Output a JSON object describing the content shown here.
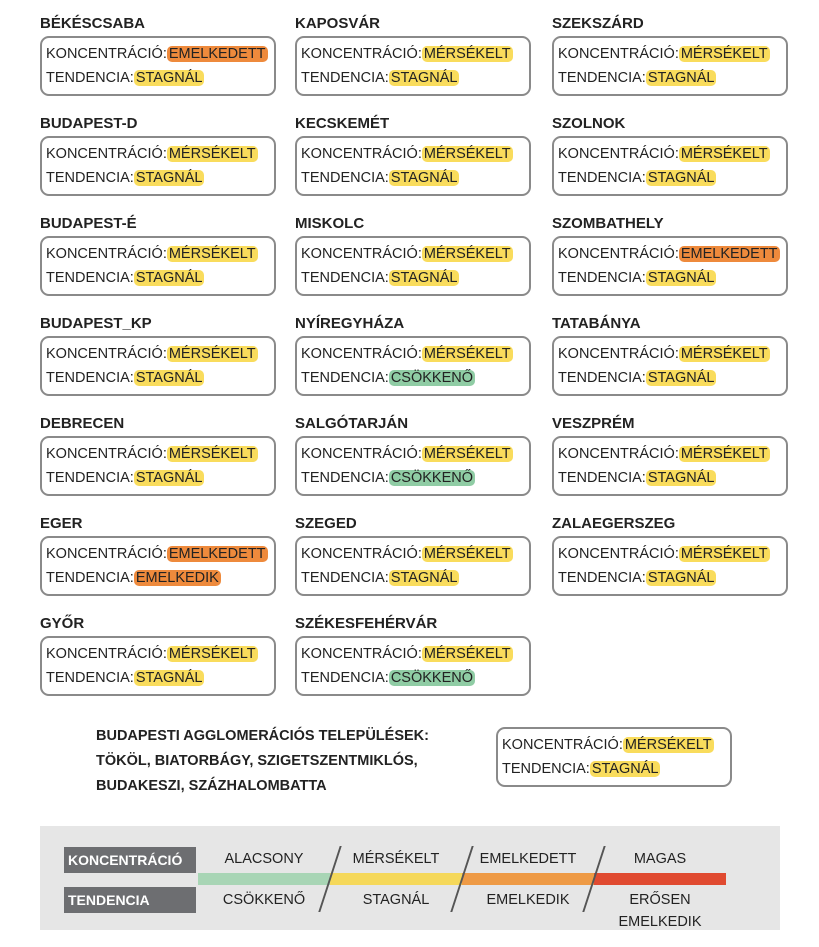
{
  "labels": {
    "concentration": "KONCENTRÁCIÓ:",
    "trend": "TENDENCIA:"
  },
  "columns": [
    [
      {
        "name": "BÉKÉSCSABA",
        "concentration": {
          "text": "EMELKEDETT",
          "color": "#ee8a3c"
        },
        "trend": {
          "text": "STAGNÁL",
          "color": "#f9dc5c"
        }
      },
      {
        "name": "BUDAPEST-D",
        "concentration": {
          "text": "MÉRSÉKELT",
          "color": "#f9dc5c"
        },
        "trend": {
          "text": "STAGNÁL",
          "color": "#f9dc5c"
        }
      },
      {
        "name": "BUDAPEST-É",
        "concentration": {
          "text": "MÉRSÉKELT",
          "color": "#f9dc5c"
        },
        "trend": {
          "text": "STAGNÁL",
          "color": "#f9dc5c"
        }
      },
      {
        "name": "BUDAPEST_KP",
        "concentration": {
          "text": "MÉRSÉKELT",
          "color": "#f9dc5c"
        },
        "trend": {
          "text": "STAGNÁL",
          "color": "#f9dc5c"
        }
      },
      {
        "name": "DEBRECEN",
        "concentration": {
          "text": "MÉRSÉKELT",
          "color": "#f9dc5c"
        },
        "trend": {
          "text": "STAGNÁL",
          "color": "#f9dc5c"
        }
      },
      {
        "name": "EGER",
        "concentration": {
          "text": "EMELKEDETT",
          "color": "#ee8a3c"
        },
        "trend": {
          "text": "EMELKEDIK",
          "color": "#ee8a3c"
        }
      },
      {
        "name": "GYŐR",
        "concentration": {
          "text": "MÉRSÉKELT",
          "color": "#f9dc5c"
        },
        "trend": {
          "text": "STAGNÁL",
          "color": "#f9dc5c"
        }
      }
    ],
    [
      {
        "name": "KAPOSVÁR",
        "concentration": {
          "text": "MÉRSÉKELT",
          "color": "#f9dc5c"
        },
        "trend": {
          "text": "STAGNÁL",
          "color": "#f9dc5c"
        }
      },
      {
        "name": "KECSKEMÉT",
        "concentration": {
          "text": "MÉRSÉKELT",
          "color": "#f9dc5c"
        },
        "trend": {
          "text": "STAGNÁL",
          "color": "#f9dc5c"
        }
      },
      {
        "name": "MISKOLC",
        "concentration": {
          "text": "MÉRSÉKELT",
          "color": "#f9dc5c"
        },
        "trend": {
          "text": "STAGNÁL",
          "color": "#f9dc5c"
        }
      },
      {
        "name": "NYÍREGYHÁZA",
        "concentration": {
          "text": "MÉRSÉKELT",
          "color": "#f9dc5c"
        },
        "trend": {
          "text": "CSÖKKENŐ",
          "color": "#8fcca4"
        }
      },
      {
        "name": "SALGÓTARJÁN",
        "concentration": {
          "text": "MÉRSÉKELT",
          "color": "#f9dc5c"
        },
        "trend": {
          "text": "CSÖKKENŐ",
          "color": "#8fcca4"
        }
      },
      {
        "name": "SZEGED",
        "concentration": {
          "text": "MÉRSÉKELT",
          "color": "#f9dc5c"
        },
        "trend": {
          "text": "STAGNÁL",
          "color": "#f9dc5c"
        }
      },
      {
        "name": "SZÉKESFEHÉRVÁR",
        "concentration": {
          "text": "MÉRSÉKELT",
          "color": "#f9dc5c"
        },
        "trend": {
          "text": "CSÖKKENŐ",
          "color": "#8fcca4"
        }
      }
    ],
    [
      {
        "name": "SZEKSZÁRD",
        "concentration": {
          "text": "MÉRSÉKELT",
          "color": "#f9dc5c"
        },
        "trend": {
          "text": "STAGNÁL",
          "color": "#f9dc5c"
        }
      },
      {
        "name": "SZOLNOK",
        "concentration": {
          "text": "MÉRSÉKELT",
          "color": "#f9dc5c"
        },
        "trend": {
          "text": "STAGNÁL",
          "color": "#f9dc5c"
        }
      },
      {
        "name": "SZOMBATHELY",
        "concentration": {
          "text": "EMELKEDETT",
          "color": "#ee8a3c"
        },
        "trend": {
          "text": "STAGNÁL",
          "color": "#f9dc5c"
        }
      },
      {
        "name": "TATABÁNYA",
        "concentration": {
          "text": "MÉRSÉKELT",
          "color": "#f9dc5c"
        },
        "trend": {
          "text": "STAGNÁL",
          "color": "#f9dc5c"
        }
      },
      {
        "name": "VESZPRÉM",
        "concentration": {
          "text": "MÉRSÉKELT",
          "color": "#f9dc5c"
        },
        "trend": {
          "text": "STAGNÁL",
          "color": "#f9dc5c"
        }
      },
      {
        "name": "ZALAEGERSZEG",
        "concentration": {
          "text": "MÉRSÉKELT",
          "color": "#f9dc5c"
        },
        "trend": {
          "text": "STAGNÁL",
          "color": "#f9dc5c"
        }
      }
    ]
  ],
  "agglomeration": {
    "lines": [
      "BUDAPESTI AGGLOMERÁCIÓS TELEPÜLÉSEK:",
      "TÖKÖL, BIATORBÁGY, SZIGETSZENTMIKLÓS,",
      "BUDAKESZI, SZÁZHALOMBATTA"
    ],
    "concentration": {
      "text": "MÉRSÉKELT",
      "color": "#f9dc5c"
    },
    "trend": {
      "text": "STAGNÁL",
      "color": "#f9dc5c"
    }
  },
  "legend": {
    "concentration_header": "KONCENTRÁCIÓ",
    "trend_header": "TENDENCIA",
    "levels": [
      {
        "concentration": "ALACSONY",
        "trend": "CSÖKKENŐ",
        "color": "#a8d5b5"
      },
      {
        "concentration": "MÉRSÉKELT",
        "trend": "STAGNÁL",
        "color": "#f5d85a"
      },
      {
        "concentration": "EMELKEDETT",
        "trend": "EMELKEDIK",
        "color": "#ee9a45"
      },
      {
        "concentration": "MAGAS",
        "trend": "ERŐSEN EMELKEDIK",
        "color": "#e04a30"
      }
    ]
  }
}
